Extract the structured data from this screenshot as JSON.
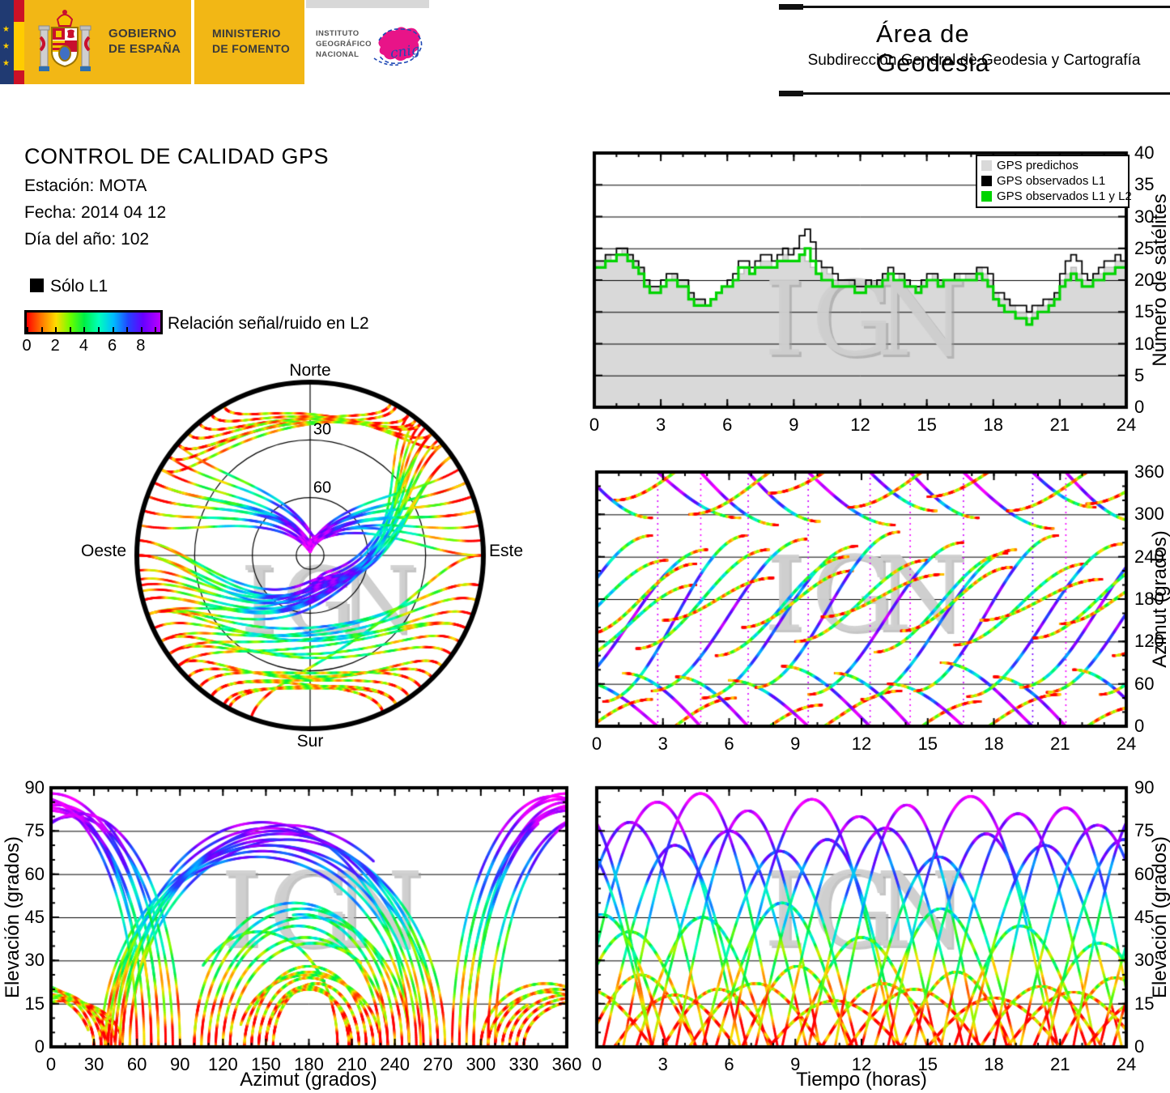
{
  "header": {
    "government": {
      "line1": "GOBIERNO",
      "line2": "DE ESPAÑA"
    },
    "ministry": {
      "line1": "MINISTERIO",
      "line2": "DE FOMENTO"
    },
    "institute": {
      "line1": "INSTITUTO",
      "line2": "GEOGRÁFICO",
      "line3": "NACIONAL",
      "logo_word": "cnig"
    },
    "area": {
      "title": "Área de Geodesia",
      "subtitle": "Subdirección General de Geodesia y Cartografía"
    }
  },
  "info": {
    "title": "CONTROL DE CALIDAD GPS",
    "station": "Estación: MOTA",
    "date": "Fecha: 2014 04 12",
    "doy": "Día del año: 102"
  },
  "l1_legend": "Sólo L1",
  "colorbar": {
    "label": "Relación señal/ruido en L2",
    "tick_labels": [
      "0",
      "2",
      "4",
      "6",
      "8"
    ],
    "range": [
      0,
      9.2
    ],
    "css_stops": [
      [
        0,
        "#ff0000"
      ],
      [
        11,
        "#ff7700"
      ],
      [
        22,
        "#ffdd00"
      ],
      [
        33,
        "#66ff00"
      ],
      [
        43,
        "#00ee44"
      ],
      [
        54,
        "#00ffbb"
      ],
      [
        65,
        "#00bbff"
      ],
      [
        76,
        "#2244ff"
      ],
      [
        87,
        "#6600ff"
      ],
      [
        100,
        "#bb00ff"
      ]
    ]
  },
  "skyplot_labels": {
    "north": "Norte",
    "south": "Sur",
    "east": "Este",
    "west": "Oeste",
    "ring30": "30",
    "ring60": "60"
  },
  "watermark": "IGN",
  "sat_chart": {
    "ylabel": "Número de satélites",
    "xticks": [
      0,
      3,
      6,
      9,
      12,
      15,
      18,
      21,
      24
    ],
    "yticks": [
      0,
      5,
      10,
      15,
      20,
      25,
      30,
      35,
      40
    ],
    "legend": [
      {
        "label": "GPS predichos",
        "color": "#d9d9d9"
      },
      {
        "label": "GPS observados L1",
        "color": "#000000"
      },
      {
        "label": "GPS observados L1 y L2",
        "color": "#00d400"
      }
    ]
  },
  "azimut_chart": {
    "ylabel": "Azimut (grados)",
    "xticks": [
      0,
      3,
      6,
      9,
      12,
      15,
      18,
      21,
      24
    ],
    "yticks": [
      0,
      60,
      120,
      180,
      240,
      300,
      360
    ]
  },
  "elev_az_chart": {
    "ylabel": "Elevación (grados)",
    "xlabel": "Azimut (grados)",
    "xticks": [
      0,
      30,
      60,
      90,
      120,
      150,
      180,
      210,
      240,
      270,
      300,
      330,
      360
    ],
    "yticks": [
      0,
      15,
      30,
      45,
      60,
      75,
      90
    ]
  },
  "elev_t_chart": {
    "ylabel": "Elevación (grados)",
    "xlabel": "Tiempo (horas)",
    "xticks": [
      0,
      3,
      6,
      9,
      12,
      15,
      18,
      21,
      24
    ],
    "yticks": [
      0,
      15,
      30,
      45,
      60,
      75,
      90
    ]
  },
  "chart_data": [
    {
      "id": "satellites-vs-time",
      "type": "line",
      "style": "steps",
      "title": "",
      "xlabel": "",
      "ylabel": "Número de satélites",
      "xlim": [
        0,
        24
      ],
      "ylim": [
        0,
        40
      ],
      "grid_y": [
        5,
        10,
        15,
        20,
        25,
        30,
        35
      ],
      "legend_position": "top-right",
      "x_start": 0,
      "x_step": 0.25,
      "series": [
        {
          "name": "GPS predichos",
          "color": "#d9d9d9",
          "fill": true,
          "values": [
            23,
            23,
            24,
            23,
            24,
            25,
            24,
            23,
            22,
            20,
            19,
            19,
            19,
            20,
            21,
            20,
            20,
            18,
            17,
            17,
            16,
            17,
            18,
            19,
            19,
            20,
            21,
            22,
            21,
            22,
            23,
            23,
            22,
            23,
            24,
            23,
            23,
            24,
            23,
            22,
            21,
            22,
            21,
            20,
            19,
            19,
            20,
            19,
            19,
            20,
            19,
            20,
            21,
            21,
            20,
            21,
            20,
            19,
            19,
            20,
            20,
            21,
            20,
            20,
            20,
            21,
            20,
            21,
            21,
            22,
            21,
            20,
            18,
            17,
            17,
            16,
            15,
            15,
            14,
            15,
            16,
            16,
            17,
            18,
            20,
            21,
            22,
            21,
            20,
            20,
            21,
            21,
            22,
            22,
            23,
            23,
            23
          ]
        },
        {
          "name": "GPS observados L1",
          "color": "#000000",
          "fill": false,
          "values": [
            23,
            23,
            24,
            24,
            25,
            25,
            24,
            23,
            22,
            20,
            19,
            19,
            20,
            21,
            21,
            20,
            20,
            18,
            17,
            17,
            16,
            17,
            18,
            19,
            20,
            21,
            23,
            23,
            22,
            23,
            24,
            24,
            23,
            24,
            25,
            24,
            25,
            27,
            28,
            26,
            23,
            22,
            22,
            21,
            20,
            20,
            20,
            19,
            19,
            20,
            19,
            20,
            21,
            22,
            21,
            21,
            20,
            19,
            19,
            20,
            21,
            21,
            20,
            20,
            20,
            21,
            21,
            21,
            21,
            22,
            22,
            21,
            18,
            18,
            17,
            16,
            16,
            16,
            15,
            16,
            16,
            17,
            17,
            18,
            21,
            23,
            24,
            23,
            21,
            20,
            21,
            22,
            23,
            23,
            24,
            23,
            24
          ]
        },
        {
          "name": "GPS observados L1 y L2",
          "color": "#00d400",
          "fill": false,
          "values": [
            22,
            22,
            23,
            23,
            24,
            24,
            23,
            22,
            21,
            19,
            18,
            18,
            19,
            20,
            20,
            19,
            19,
            17,
            16,
            16,
            16,
            17,
            18,
            19,
            19,
            20,
            22,
            22,
            21,
            22,
            22,
            22,
            22,
            23,
            23,
            23,
            23,
            24,
            25,
            23,
            21,
            20,
            20,
            19,
            19,
            19,
            19,
            18,
            18,
            19,
            19,
            19,
            20,
            21,
            20,
            20,
            19,
            19,
            18,
            19,
            20,
            20,
            19,
            20,
            20,
            20,
            20,
            20,
            20,
            21,
            20,
            19,
            17,
            16,
            15,
            15,
            14,
            14,
            13,
            14,
            15,
            15,
            16,
            17,
            19,
            20,
            21,
            20,
            19,
            19,
            20,
            20,
            21,
            21,
            22,
            22,
            23
          ]
        }
      ]
    },
    {
      "id": "satellite-passes",
      "type": "scatter",
      "note": "Shared satellite pass data, colored by L2 signal/noise (correlated with elevation). Each pass: [rise_hour, duration_h, rise_azimuth_deg, set_azimuth_deg, max_elevation_deg, crosses_north]. Used by skyplot, azimuth-vs-time, elevation-vs-azimuth and elevation-vs-time panels.",
      "snr_colormap": [
        [
          0,
          "#ff0000"
        ],
        [
          1,
          "#ff7700"
        ],
        [
          2,
          "#ffdd00"
        ],
        [
          3,
          "#77ff00"
        ],
        [
          4,
          "#00ee44"
        ],
        [
          5,
          "#00ffbb"
        ],
        [
          6,
          "#00bbff"
        ],
        [
          7,
          "#2244ff"
        ],
        [
          8,
          "#6600ff"
        ],
        [
          9,
          "#cc00ff"
        ],
        [
          10,
          "#ff00ff"
        ]
      ],
      "passes": [
        [
          -2.0,
          7,
          45,
          250,
          78,
          0
        ],
        [
          -1.5,
          6,
          90,
          200,
          40,
          0
        ],
        [
          -1.0,
          7.5,
          65,
          295,
          85,
          1
        ],
        [
          -0.5,
          5,
          130,
          230,
          25,
          0
        ],
        [
          0.3,
          6.5,
          35,
          270,
          70,
          0
        ],
        [
          0.8,
          5.5,
          320,
          40,
          18,
          1
        ],
        [
          1.2,
          7,
          75,
          285,
          88,
          1
        ],
        [
          1.8,
          6,
          110,
          250,
          45,
          0
        ],
        [
          2.5,
          7,
          50,
          265,
          75,
          0
        ],
        [
          3.0,
          5,
          150,
          210,
          20,
          0
        ],
        [
          3.6,
          6.5,
          70,
          290,
          82,
          1
        ],
        [
          4.2,
          6,
          300,
          30,
          22,
          1
        ],
        [
          4.8,
          7,
          40,
          255,
          68,
          0
        ],
        [
          5.4,
          6,
          100,
          240,
          50,
          0
        ],
        [
          6.0,
          7.5,
          65,
          285,
          86,
          1
        ],
        [
          6.6,
          5,
          140,
          220,
          28,
          0
        ],
        [
          7.2,
          6.5,
          55,
          275,
          72,
          0
        ],
        [
          7.8,
          6,
          330,
          50,
          16,
          1
        ],
        [
          8.4,
          7,
          85,
          305,
          80,
          1
        ],
        [
          9.0,
          6,
          120,
          235,
          38,
          0
        ],
        [
          9.6,
          7,
          45,
          260,
          76,
          0
        ],
        [
          10.2,
          5.5,
          155,
          215,
          22,
          0
        ],
        [
          10.8,
          6.5,
          75,
          295,
          84,
          1
        ],
        [
          11.4,
          6,
          310,
          35,
          20,
          1
        ],
        [
          12.0,
          7,
          38,
          250,
          66,
          0
        ],
        [
          12.6,
          6,
          105,
          245,
          48,
          0
        ],
        [
          13.2,
          7.5,
          60,
          280,
          87,
          1
        ],
        [
          13.8,
          5,
          135,
          225,
          26,
          0
        ],
        [
          14.4,
          6.5,
          50,
          270,
          74,
          0
        ],
        [
          15.0,
          6,
          325,
          45,
          17,
          1
        ],
        [
          15.6,
          7,
          90,
          310,
          81,
          1
        ],
        [
          16.2,
          6,
          115,
          230,
          42,
          0
        ],
        [
          16.8,
          7,
          42,
          258,
          70,
          0
        ],
        [
          17.4,
          5.5,
          150,
          208,
          21,
          0
        ],
        [
          18.0,
          6.5,
          70,
          290,
          83,
          1
        ],
        [
          18.6,
          6,
          305,
          28,
          19,
          1
        ],
        [
          19.2,
          7,
          55,
          275,
          77,
          0
        ],
        [
          19.8,
          6,
          125,
          240,
          36,
          0
        ],
        [
          20.4,
          7,
          48,
          262,
          72,
          0
        ],
        [
          21.0,
          5,
          145,
          215,
          24,
          0
        ],
        [
          21.6,
          6.5,
          80,
          300,
          85,
          1
        ],
        [
          22.2,
          6,
          315,
          40,
          18,
          1
        ],
        [
          22.8,
          7,
          45,
          255,
          69,
          0
        ],
        [
          23.4,
          6,
          100,
          250,
          52,
          0
        ],
        [
          -4.0,
          6.5,
          75,
          295,
          83,
          1
        ],
        [
          -2.8,
          6,
          115,
          235,
          46,
          0
        ],
        [
          -3.5,
          6,
          310,
          38,
          20,
          1
        ],
        [
          -4.5,
          7,
          55,
          270,
          73,
          0
        ]
      ]
    },
    {
      "id": "skyplot",
      "type": "scatter",
      "projection": "polar-sky",
      "labels": [
        "Norte",
        "Este",
        "Sur",
        "Oeste"
      ],
      "elevation_rings": [
        30,
        60
      ],
      "data_ref": "satellite-passes"
    },
    {
      "id": "azimut-vs-time",
      "type": "scatter",
      "xlabel": "",
      "ylabel": "Azimut (grados)",
      "xlim": [
        0,
        24
      ],
      "ylim": [
        0,
        360
      ],
      "grid_y": [
        60,
        120,
        180,
        240,
        300
      ],
      "data_ref": "satellite-passes"
    },
    {
      "id": "elevacion-vs-azimut",
      "type": "scatter",
      "xlabel": "Azimut (grados)",
      "ylabel": "Elevación (grados)",
      "xlim": [
        0,
        360
      ],
      "ylim": [
        0,
        90
      ],
      "grid_y": [
        15,
        30,
        45,
        60,
        75
      ],
      "data_ref": "satellite-passes"
    },
    {
      "id": "elevacion-vs-tiempo",
      "type": "scatter",
      "xlabel": "Tiempo (horas)",
      "ylabel": "Elevación (grados)",
      "xlim": [
        0,
        24
      ],
      "ylim": [
        0,
        90
      ],
      "grid_y": [
        15,
        30,
        45,
        60,
        75
      ],
      "data_ref": "satellite-passes"
    }
  ]
}
